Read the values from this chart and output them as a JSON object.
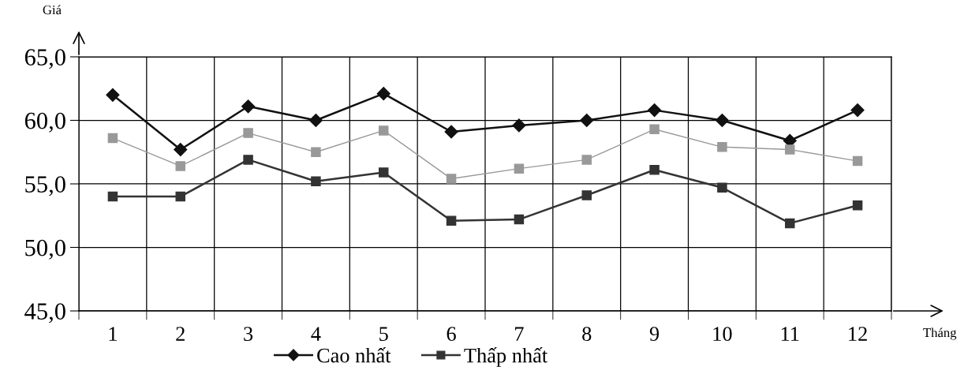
{
  "chart_data": {
    "type": "line",
    "xlabel": "Tháng",
    "ylabel": "Giá",
    "categories": [
      "1",
      "2",
      "3",
      "4",
      "5",
      "6",
      "7",
      "8",
      "9",
      "10",
      "11",
      "12"
    ],
    "series": [
      {
        "name": "Cao nhất",
        "color": "#111111",
        "marker": "diamond",
        "values": [
          62.0,
          57.7,
          61.1,
          60.0,
          62.1,
          59.1,
          59.6,
          60.0,
          60.8,
          60.0,
          58.4,
          60.8
        ]
      },
      {
        "color": "#999999",
        "marker": "square",
        "values": [
          58.6,
          56.4,
          59.0,
          57.5,
          59.2,
          55.4,
          56.2,
          56.9,
          59.3,
          57.9,
          57.7,
          56.8
        ]
      },
      {
        "name": "Thấp nhất",
        "color": "#333333",
        "marker": "square",
        "values": [
          54.0,
          54.0,
          56.9,
          55.2,
          55.9,
          52.1,
          52.2,
          54.1,
          56.1,
          54.7,
          51.9,
          53.3
        ]
      }
    ],
    "ylim": [
      45,
      65
    ],
    "yticks": [
      {
        "value": 45,
        "label": "45,0"
      },
      {
        "value": 50,
        "label": "50,0"
      },
      {
        "value": 55,
        "label": "55,0"
      },
      {
        "value": 60,
        "label": "60,0"
      },
      {
        "value": 65,
        "label": "65,0"
      }
    ],
    "grid": true,
    "legend": "bottom",
    "line_style": "solid"
  }
}
